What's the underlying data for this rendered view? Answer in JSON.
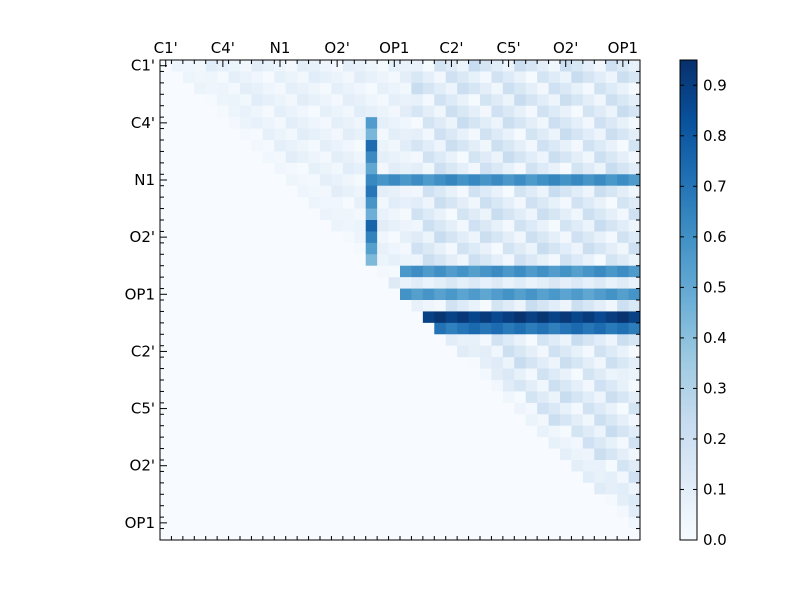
{
  "chart_data": {
    "type": "heatmap",
    "x_tick_labels": [
      "C1'",
      "C4'",
      "N1",
      "O2'",
      "OP1",
      "C2'",
      "C5'",
      "O2'",
      "OP1"
    ],
    "y_tick_labels": [
      "C1'",
      "C4'",
      "N1",
      "O2'",
      "OP1",
      "C2'",
      "C5'",
      "O2'",
      "OP1"
    ],
    "grid_size": 42,
    "colormap": "Blues",
    "colorbar": {
      "min": 0.0,
      "max": 0.95,
      "tick_labels": [
        "0.0",
        "0.1",
        "0.2",
        "0.3",
        "0.4",
        "0.5",
        "0.6",
        "0.7",
        "0.8",
        "0.9"
      ],
      "tick_values": [
        0.0,
        0.1,
        0.2,
        0.3,
        0.4,
        0.5,
        0.6,
        0.7,
        0.8,
        0.9
      ]
    },
    "matrix_structure": "upper-triangular",
    "highlighted_rows": [
      {
        "row": 10,
        "from_col": 18,
        "to_col": 41,
        "approx_value": 0.6
      },
      {
        "row": 18,
        "from_col": 21,
        "to_col": 41,
        "approx_value": 0.58
      },
      {
        "row": 19,
        "from_col": 14,
        "to_col": 41,
        "approx_value": 0.1
      },
      {
        "row": 20,
        "from_col": 18,
        "to_col": 41,
        "approx_value": 0.55
      },
      {
        "row": 22,
        "from_col": 22,
        "to_col": 41,
        "approx_value": 0.9
      },
      {
        "row": 23,
        "from_col": 22,
        "to_col": 41,
        "approx_value": 0.7
      }
    ],
    "highlighted_columns": [
      {
        "col": 18,
        "from_row": 5,
        "to_row": 21,
        "approx_value": 0.8
      }
    ]
  }
}
